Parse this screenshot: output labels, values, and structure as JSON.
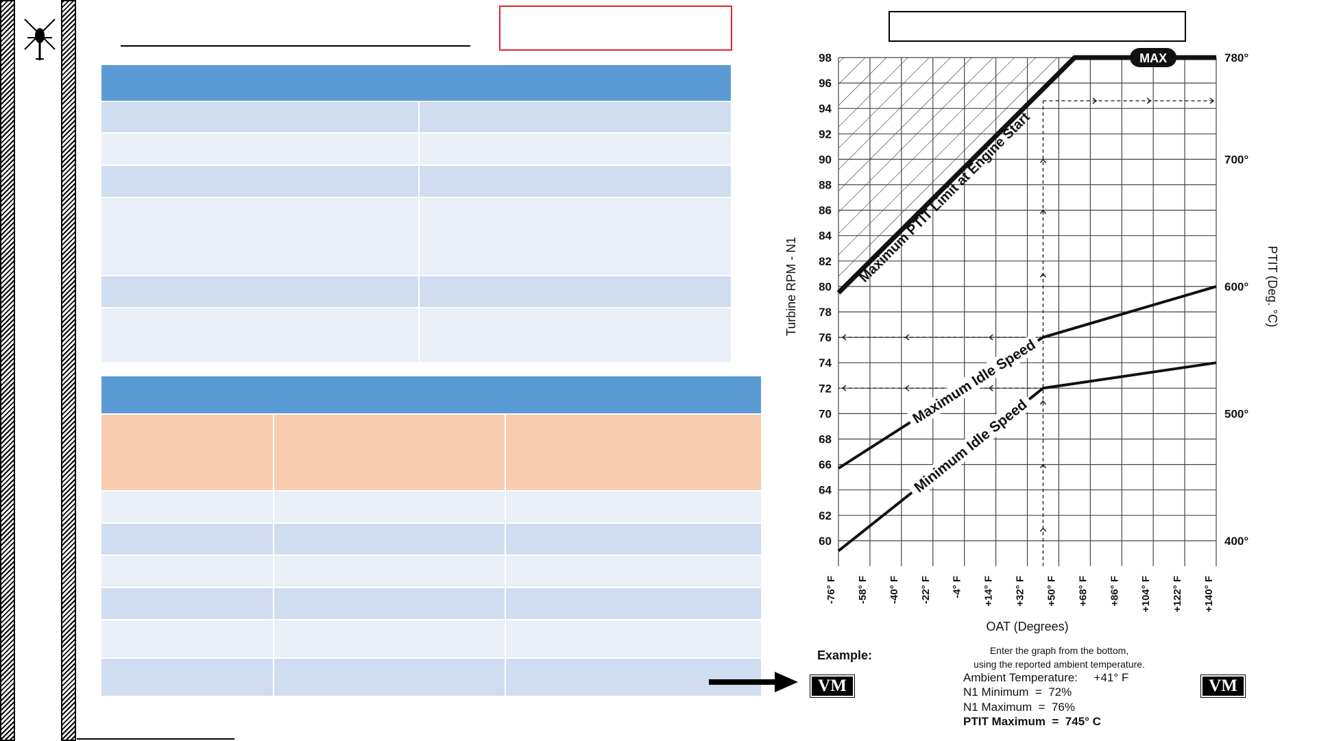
{
  "logo": {
    "icon": "helicopter-icon"
  },
  "chart_data": {
    "type": "line",
    "xlabel": "OAT (Degrees)",
    "ylabel_left": "Turbine RPM - N1",
    "ylabel_right": "PTIT (Deg. °C)",
    "x_ticks": [
      "-76° F",
      "-58° F",
      "-40° F",
      "-22° F",
      "-4° F",
      "+14° F",
      "+32° F",
      "+50° F",
      "+68° F",
      "+86° F",
      "+104° F",
      "+122° F",
      "+140° F"
    ],
    "x_values": [
      -76,
      -58,
      -40,
      -22,
      -4,
      14,
      32,
      50,
      68,
      86,
      104,
      122,
      140
    ],
    "xlim": [
      -76,
      140
    ],
    "ylim": [
      58,
      98
    ],
    "y_ticks": [
      60,
      62,
      64,
      66,
      68,
      70,
      72,
      74,
      76,
      78,
      80,
      82,
      84,
      86,
      88,
      90,
      92,
      94,
      96,
      98
    ],
    "y2_ticks": [
      "400°",
      "500°",
      "600°",
      "700°",
      "780°"
    ],
    "y2_positions_n1": [
      60,
      70,
      80,
      90,
      98
    ],
    "grid": true,
    "max_badge": "MAX",
    "series": [
      {
        "name": "Maximum PTIT Limit at Engine Start",
        "x": [
          -76,
          59,
          140
        ],
        "y": [
          79.5,
          98,
          98
        ]
      },
      {
        "name": "Maximum Idle Speed",
        "x": [
          -76,
          41,
          140
        ],
        "y": [
          65.7,
          76,
          80
        ]
      },
      {
        "name": "Minimum Idle Speed",
        "x": [
          -76,
          41,
          140
        ],
        "y": [
          59.2,
          72,
          74
        ]
      }
    ],
    "example_guide": {
      "x": 41,
      "n1_min": 72,
      "n1_max": 76,
      "n1_top": 94.6
    }
  },
  "example": {
    "label": "Example:",
    "instruction_1": "Enter the graph from the bottom,",
    "instruction_2": "using the reported ambient temperature.",
    "ambient": "Ambient Temperature:     +41° F",
    "n1_min": "N1 Minimum  =  72%",
    "n1_max": "N1 Maximum  =  76%",
    "ptit_max": "PTIT Maximum  =  745° C"
  },
  "badges": {
    "left": "VM",
    "right": "VM"
  }
}
